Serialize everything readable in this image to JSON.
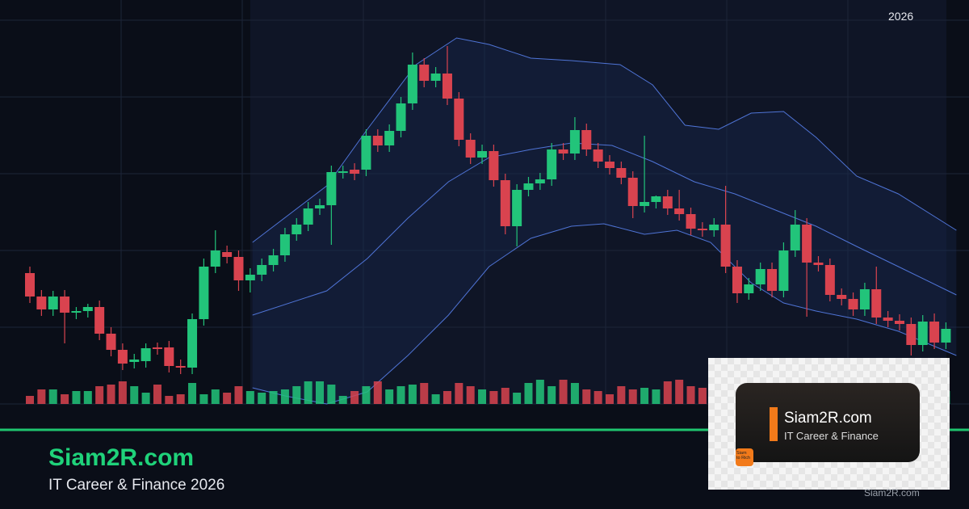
{
  "chart_data": {
    "type": "candlestick",
    "open": [
      162,
      133,
      117,
      133,
      113,
      115,
      120,
      87,
      67,
      52,
      53,
      70,
      70,
      47,
      45,
      105,
      170,
      188,
      182,
      153,
      160,
      172,
      184,
      210,
      222,
      242,
      246,
      287,
      290,
      290,
      332,
      320,
      338,
      372,
      420,
      400,
      409,
      378,
      327,
      305,
      313,
      277,
      220,
      265,
      273,
      278,
      315,
      310,
      339,
      315,
      300,
      292,
      280,
      245,
      250,
      257,
      242,
      235,
      217,
      215,
      222,
      170,
      137,
      148,
      167,
      140,
      190,
      222,
      175,
      172,
      135,
      130,
      117,
      142,
      107,
      103,
      99,
      73,
      102,
      76
    ],
    "high": [
      170,
      141,
      140,
      141,
      120,
      124,
      128,
      95,
      75,
      62,
      75,
      76,
      78,
      55,
      112,
      180,
      215,
      196,
      190,
      168,
      180,
      192,
      218,
      230,
      250,
      254,
      295,
      295,
      298,
      340,
      340,
      346,
      380,
      435,
      428,
      417,
      443,
      386,
      335,
      321,
      321,
      285,
      272,
      281,
      286,
      323,
      323,
      355,
      347,
      323,
      308,
      300,
      288,
      332,
      258,
      265,
      265,
      243,
      225,
      230,
      270,
      178,
      156,
      175,
      175,
      200,
      240,
      230,
      183,
      180,
      143,
      138,
      150,
      170,
      115,
      111,
      107,
      110,
      112,
      101
    ],
    "low": [
      125,
      109,
      109,
      75,
      105,
      107,
      79,
      59,
      42,
      44,
      45,
      61,
      39,
      37,
      37,
      97,
      162,
      174,
      140,
      138,
      152,
      164,
      176,
      202,
      214,
      234,
      197,
      279,
      277,
      282,
      312,
      312,
      330,
      364,
      392,
      392,
      370,
      319,
      297,
      297,
      269,
      210,
      195,
      257,
      265,
      270,
      302,
      302,
      307,
      292,
      284,
      272,
      230,
      237,
      242,
      234,
      227,
      209,
      207,
      207,
      162,
      125,
      129,
      140,
      132,
      132,
      182,
      108,
      164,
      127,
      122,
      109,
      109,
      99,
      95,
      91,
      60,
      65,
      68,
      68
    ],
    "close": [
      133,
      117,
      133,
      113,
      115,
      120,
      87,
      67,
      50,
      55,
      69,
      69,
      47,
      45,
      105,
      170,
      190,
      182,
      153,
      160,
      172,
      184,
      210,
      222,
      242,
      246,
      287,
      288,
      285,
      332,
      320,
      338,
      372,
      420,
      400,
      409,
      378,
      327,
      305,
      313,
      277,
      220,
      265,
      273,
      278,
      315,
      310,
      339,
      315,
      300,
      292,
      280,
      245,
      250,
      257,
      242,
      235,
      217,
      215,
      222,
      170,
      137,
      148,
      167,
      140,
      190,
      222,
      175,
      172,
      135,
      130,
      117,
      142,
      107,
      103,
      99,
      73,
      102,
      76,
      93
    ],
    "volume": [
      10,
      18,
      18,
      12,
      16,
      16,
      22,
      24,
      28,
      22,
      14,
      24,
      10,
      12,
      26,
      12,
      18,
      14,
      22,
      16,
      14,
      16,
      18,
      22,
      28,
      28,
      24,
      10,
      16,
      22,
      28,
      18,
      22,
      24,
      26,
      12,
      16,
      26,
      22,
      18,
      16,
      20,
      14,
      26,
      30,
      22,
      30,
      26,
      18,
      16,
      12,
      22,
      18,
      20,
      18,
      28,
      30,
      22,
      20,
      20,
      18,
      22,
      10,
      24,
      12,
      18,
      10,
      22,
      18,
      14,
      12,
      24,
      22,
      14,
      10,
      16,
      12,
      10,
      22,
      16
    ],
    "ylim": [
      0,
      500
    ],
    "volume_lim": [
      0,
      100
    ],
    "up_color": "#22c47a",
    "down_color": "#d9434f",
    "band_color": "#4f74d6",
    "bands": [
      {
        "name": "upper",
        "x": [
          19.2,
          25.6,
          29.1,
          33.3,
          36.8,
          39.6,
          43.2,
          46.7,
          50.9,
          53.7,
          56.5,
          59.4,
          62.2,
          65,
          67.8,
          71.3,
          74.9,
          79.9
        ],
        "values": [
          200,
          270,
          340,
          420,
          453,
          445,
          428,
          425,
          420,
          395,
          345,
          340,
          360,
          362,
          330,
          282,
          260,
          215
        ]
      },
      {
        "name": "middle",
        "x": [
          19.2,
          25.6,
          29.1,
          32.6,
          36.1,
          39.6,
          43.2,
          46.7,
          50.2,
          53.7,
          57.3,
          60.8,
          64.3,
          67.8,
          71.3,
          74.9,
          79.9
        ],
        "values": [
          110,
          140,
          180,
          230,
          275,
          305,
          315,
          323,
          320,
          300,
          275,
          260,
          240,
          220,
          195,
          170,
          135
        ]
      },
      {
        "name": "lower",
        "x": [
          19.2,
          22,
          25.6,
          29.1,
          32.6,
          36.1,
          39.6,
          43.2,
          46.7,
          49.5,
          53,
          55.8,
          58.7,
          62.2,
          65,
          67.8,
          71.3,
          74.9,
          79.9
        ],
        "values": [
          20,
          10,
          0,
          15,
          60,
          110,
          170,
          205,
          220,
          223,
          210,
          215,
          200,
          150,
          125,
          115,
          105,
          90,
          60
        ]
      }
    ]
  },
  "branding": {
    "year": "2026",
    "title": "Siam2R.com",
    "subtitle": "IT Career & Finance 2026",
    "logo": {
      "title": "Siam2R.com",
      "subtitle": "IT Career & Finance",
      "badge_top": "Siam",
      "badge_bottom": "to Rich"
    },
    "watermark": "Siam2R.com"
  }
}
